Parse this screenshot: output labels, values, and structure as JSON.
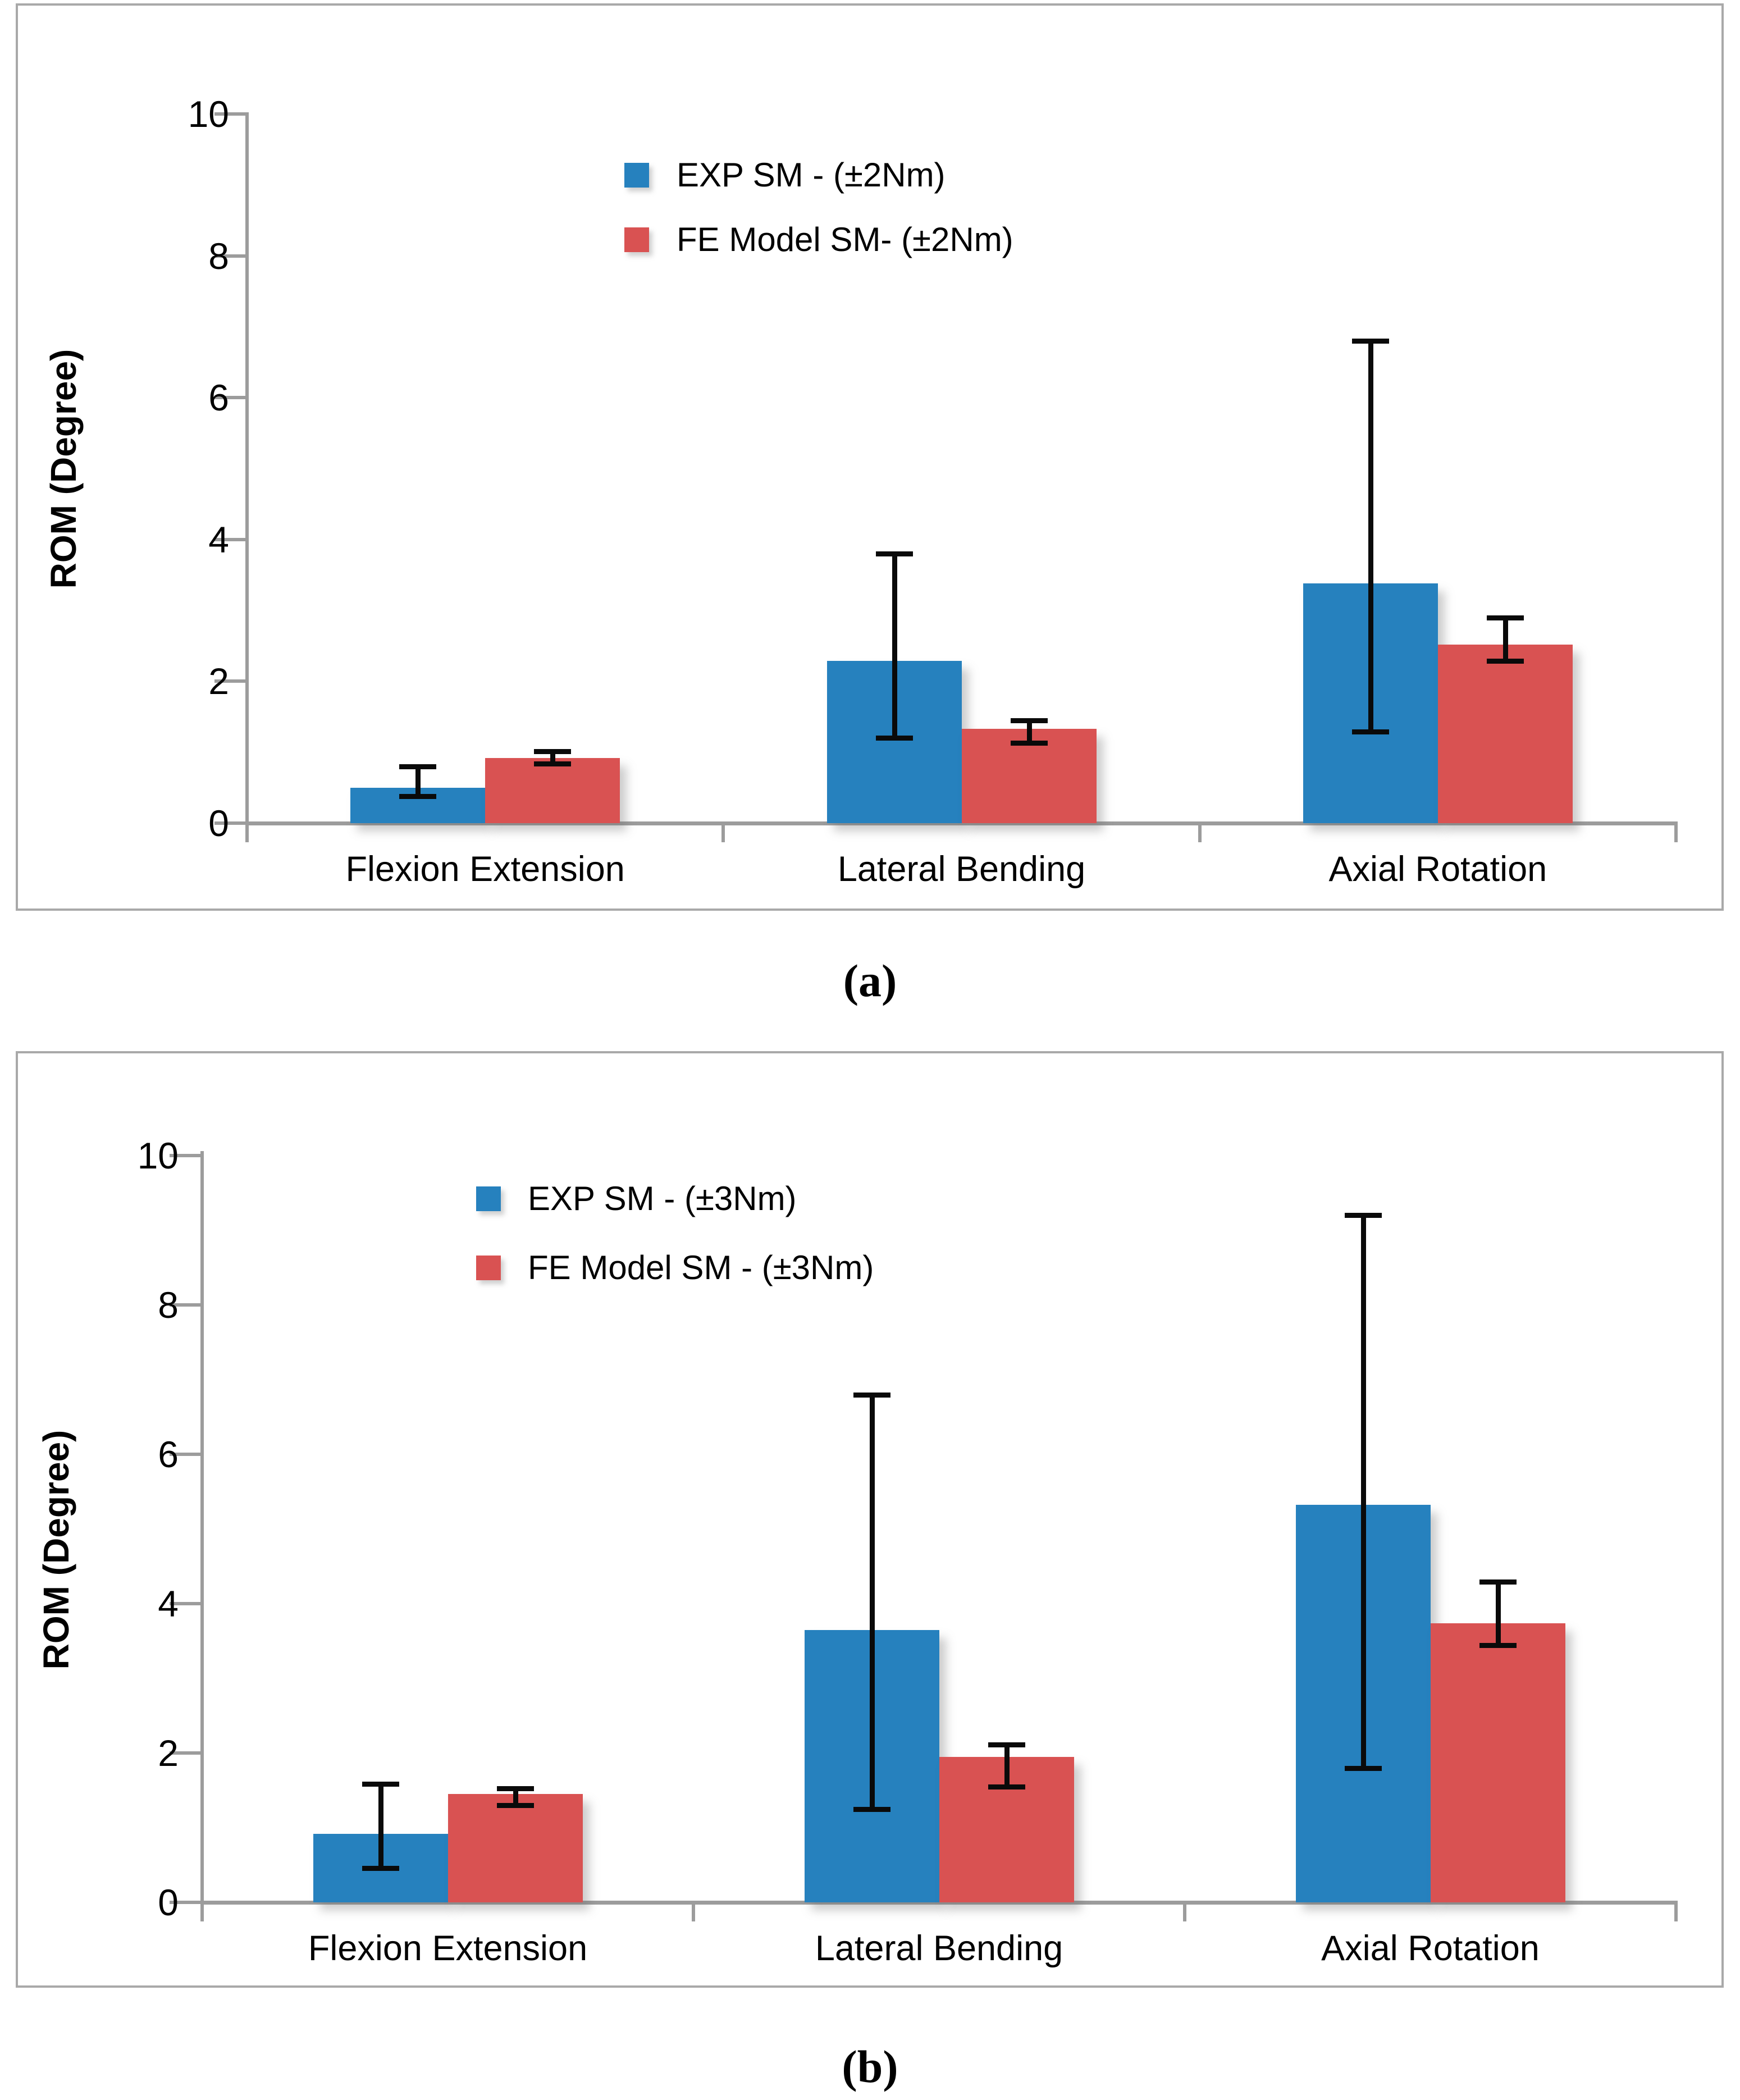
{
  "figure": {
    "caption_a": "(a)",
    "caption_b": "(b)"
  },
  "colors": {
    "exp_series": "#2681BE",
    "fe_model_series": "#D95252",
    "axis": "#9C9C9C",
    "panel_border": "#A9A9A9",
    "error_bar": "#0A0A0A",
    "text": "#000000"
  },
  "chart_data": [
    {
      "id": "a",
      "type": "bar",
      "caption": "(a)",
      "ylabel": "ROM (Degree)",
      "xlabel": "",
      "ylim": [
        0,
        10
      ],
      "yticks": [
        0,
        2,
        4,
        6,
        8,
        10
      ],
      "grid": false,
      "legend_position": "upper-center-inside",
      "categories": [
        "Flexion Extension",
        "Lateral Bending",
        "Axial Rotation"
      ],
      "series": [
        {
          "name": "EXP SM - (±2Nm)",
          "color": "#2681BE",
          "values": [
            0.5,
            2.29,
            3.38
          ],
          "err_low": [
            0.38,
            1.2,
            1.29
          ],
          "err_high": [
            0.8,
            3.8,
            6.8
          ]
        },
        {
          "name": "FE Model SM- (±2Nm)",
          "color": "#D95252",
          "values": [
            0.92,
            1.33,
            2.52
          ],
          "err_low": [
            0.84,
            1.13,
            2.29
          ],
          "err_high": [
            1.01,
            1.45,
            2.9
          ]
        }
      ]
    },
    {
      "id": "b",
      "type": "bar",
      "caption": "(b)",
      "ylabel": "ROM (Degree)",
      "xlabel": "",
      "ylim": [
        0,
        10
      ],
      "yticks": [
        0,
        2,
        4,
        6,
        8,
        10
      ],
      "grid": false,
      "legend_position": "upper-center-inside",
      "categories": [
        "Flexion Extension",
        "Lateral Bending",
        "Axial Rotation"
      ],
      "series": [
        {
          "name": "EXP SM - (±3Nm)",
          "color": "#2681BE",
          "values": [
            0.92,
            3.65,
            5.32
          ],
          "err_low": [
            0.46,
            1.25,
            1.8
          ],
          "err_high": [
            1.59,
            6.8,
            9.2
          ]
        },
        {
          "name": "FE Model SM - (±3Nm)",
          "color": "#D95252",
          "values": [
            1.45,
            1.95,
            3.74
          ],
          "err_low": [
            1.3,
            1.55,
            3.44
          ],
          "err_high": [
            1.53,
            2.11,
            4.29
          ]
        }
      ]
    }
  ]
}
